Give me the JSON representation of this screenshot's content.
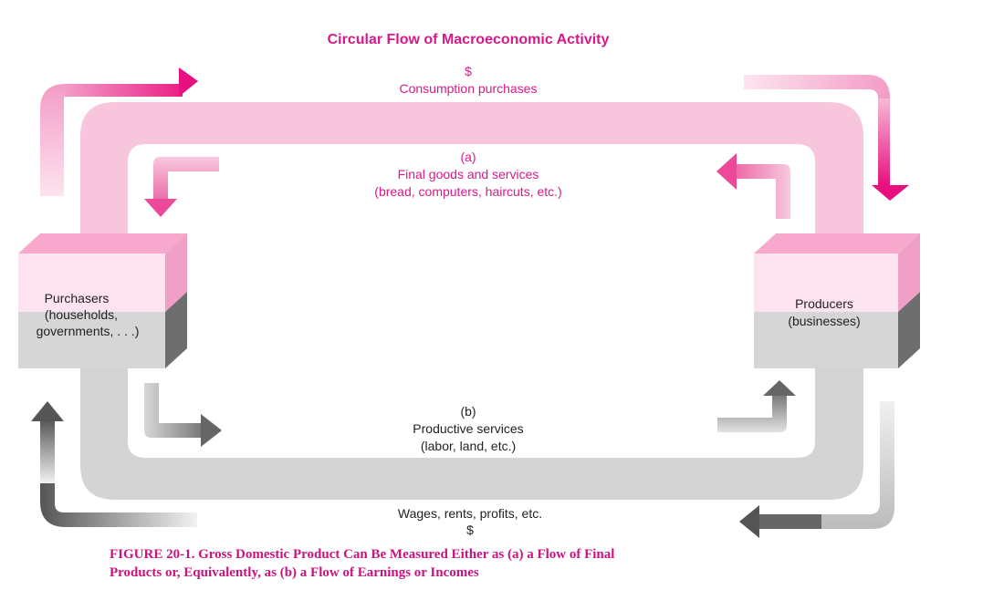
{
  "diagram": {
    "title": "Circular Flow of Macroeconomic Activity",
    "top_flow": {
      "symbol": "$",
      "label": "Consumption purchases"
    },
    "inner_top_flow": {
      "tag": "(a)",
      "label": "Final goods and services",
      "examples": "(bread, computers, haircuts, etc.)"
    },
    "inner_bottom_flow": {
      "tag": "(b)",
      "label": "Productive services",
      "examples": "(labor, land, etc.)"
    },
    "bottom_flow": {
      "label": "Wages, rents, profits, etc.",
      "symbol": "$"
    },
    "purchasers_box": {
      "line1": "Purchasers",
      "line2": "(households,",
      "line3": "governments, . . .)"
    },
    "producers_box": {
      "line1": "Producers",
      "line2": "(businesses)"
    },
    "colors": {
      "pink_band": "#f7c6dc",
      "pink_strong": "#e8107f",
      "pink_text": "#d6198a",
      "gray_band": "#d4d4d4",
      "gray_dark": "#555555"
    }
  },
  "caption": {
    "line1": "FIGURE 20-1.  Gross Domestic Product Can Be Measured Either as (a) a Flow of Final",
    "line2": "Products or, Equivalently, as (b) a Flow of Earnings or Incomes"
  }
}
